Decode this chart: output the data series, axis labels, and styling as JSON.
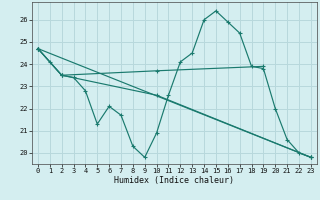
{
  "xlabel": "Humidex (Indice chaleur)",
  "bg_color": "#d4eef0",
  "grid_color": "#b8d8dc",
  "line_color": "#1a7a6e",
  "xlim": [
    -0.5,
    23.5
  ],
  "ylim": [
    19.5,
    26.8
  ],
  "yticks": [
    20,
    21,
    22,
    23,
    24,
    25,
    26
  ],
  "xticks": [
    0,
    1,
    2,
    3,
    4,
    5,
    6,
    7,
    8,
    9,
    10,
    11,
    12,
    13,
    14,
    15,
    16,
    17,
    18,
    19,
    20,
    21,
    22,
    23
  ],
  "series_main": {
    "x": [
      0,
      1,
      2,
      3,
      4,
      5,
      6,
      7,
      8,
      9,
      10,
      11,
      12,
      13,
      14,
      15,
      16,
      17,
      18,
      19,
      20,
      21,
      22,
      23
    ],
    "y": [
      24.7,
      24.1,
      23.5,
      23.4,
      22.8,
      21.3,
      22.1,
      21.7,
      20.3,
      19.8,
      20.9,
      22.6,
      24.1,
      24.5,
      26.0,
      26.4,
      25.9,
      25.4,
      23.9,
      23.8,
      22.0,
      20.6,
      20.0,
      19.8
    ]
  },
  "series_extra": [
    {
      "x": [
        0,
        2,
        10,
        19
      ],
      "y": [
        24.7,
        23.5,
        23.7,
        23.9
      ]
    },
    {
      "x": [
        0,
        2,
        10,
        23
      ],
      "y": [
        24.7,
        23.5,
        22.6,
        19.8
      ]
    },
    {
      "x": [
        0,
        23
      ],
      "y": [
        24.7,
        19.8
      ]
    }
  ]
}
